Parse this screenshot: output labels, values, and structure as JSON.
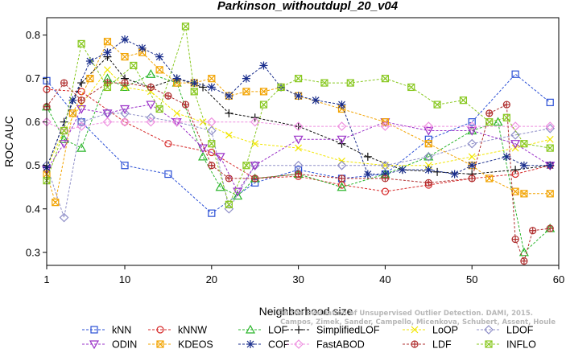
{
  "chart_data": {
    "type": "line",
    "title": "Parkinson_withoutdupl_20_v04",
    "xlabel": "Neighborhood size",
    "ylabel": "ROC AUC",
    "xlim": [
      1,
      60
    ],
    "ylim": [
      0.27,
      0.84
    ],
    "xticks": [
      1,
      10,
      20,
      30,
      40,
      50,
      60
    ],
    "yticks": [
      0.3,
      0.4,
      0.5,
      0.6,
      0.7,
      0.8
    ],
    "grid": false,
    "legend_position": "bottom",
    "watermark": [
      "On the Evaluation of Unsupervised Outlier Detection. DAMI, 2015.",
      "Campos, Zimek, Sander, Campello, Micenkova, Schubert, Assent, Houle"
    ],
    "series": [
      {
        "name": "kNN",
        "color": "#2a4fd6",
        "marker": "square",
        "x": [
          1,
          5,
          10,
          15,
          20,
          25,
          30,
          35,
          40,
          45,
          50,
          55,
          59
        ],
        "y": [
          0.695,
          0.6,
          0.5,
          0.48,
          0.39,
          0.46,
          0.49,
          0.47,
          0.48,
          0.56,
          0.6,
          0.71,
          0.645
        ]
      },
      {
        "name": "kNNW",
        "color": "#d62a2a",
        "marker": "circle",
        "x": [
          1,
          5,
          10,
          15,
          20,
          25,
          30,
          35,
          40,
          45,
          50,
          55,
          59
        ],
        "y": [
          0.675,
          0.67,
          0.6,
          0.55,
          0.53,
          0.47,
          0.475,
          0.455,
          0.44,
          0.455,
          0.47,
          0.48,
          0.5
        ]
      },
      {
        "name": "LOF",
        "color": "#2bb52b",
        "marker": "triangle-up",
        "x": [
          1,
          3,
          5,
          8,
          10,
          13,
          16,
          19,
          21,
          23,
          25,
          30,
          35,
          40,
          45,
          50,
          53,
          56,
          59
        ],
        "y": [
          0.635,
          0.56,
          0.54,
          0.7,
          0.68,
          0.71,
          0.69,
          0.52,
          0.45,
          0.43,
          0.47,
          0.48,
          0.45,
          0.48,
          0.52,
          0.58,
          0.6,
          0.3,
          0.355
        ]
      },
      {
        "name": "SimplifiedLOF",
        "color": "#111111",
        "marker": "plus",
        "x": [
          1,
          3,
          5,
          8,
          10,
          13,
          16,
          19,
          22,
          25,
          30,
          35,
          38,
          42,
          46,
          50,
          55,
          59
        ],
        "y": [
          0.495,
          0.6,
          0.69,
          0.75,
          0.7,
          0.68,
          0.7,
          0.68,
          0.62,
          0.61,
          0.59,
          0.55,
          0.52,
          0.49,
          0.485,
          0.48,
          0.49,
          0.5
        ]
      },
      {
        "name": "LoOP",
        "color": "#f2e600",
        "marker": "x",
        "x": [
          1,
          3,
          5,
          8,
          10,
          13,
          16,
          19,
          22,
          25,
          30,
          35,
          40,
          45,
          50,
          55,
          59
        ],
        "y": [
          0.495,
          0.58,
          0.64,
          0.72,
          0.68,
          0.67,
          0.62,
          0.6,
          0.57,
          0.55,
          0.54,
          0.51,
          0.5,
          0.5,
          0.52,
          0.54,
          0.56
        ]
      },
      {
        "name": "LDOF",
        "color": "#8f8fc8",
        "marker": "diamond",
        "x": [
          1,
          3,
          5,
          8,
          10,
          13,
          16,
          20,
          22,
          25,
          30,
          35,
          40,
          45,
          50,
          55,
          59
        ],
        "y": [
          0.5,
          0.38,
          0.6,
          0.62,
          0.62,
          0.61,
          0.6,
          0.58,
          0.4,
          0.5,
          0.5,
          0.5,
          0.5,
          0.52,
          0.55,
          0.57,
          0.585
        ]
      },
      {
        "name": "ODIN",
        "color": "#9a30c8",
        "marker": "triangle-down",
        "x": [
          1,
          3,
          5,
          8,
          10,
          13,
          16,
          19,
          21,
          23,
          25,
          30,
          35,
          40,
          45,
          50,
          55,
          59
        ],
        "y": [
          0.49,
          0.55,
          0.63,
          0.62,
          0.63,
          0.64,
          0.6,
          0.54,
          0.52,
          0.44,
          0.5,
          0.56,
          0.56,
          0.6,
          0.58,
          0.58,
          0.55,
          0.5
        ]
      },
      {
        "name": "KDEOS",
        "color": "#f2a300",
        "marker": "boxed-x",
        "x": [
          1,
          2,
          4,
          6,
          8,
          10,
          12,
          14,
          16,
          18,
          20,
          22,
          24,
          26,
          28,
          30,
          35,
          40,
          45,
          50,
          52,
          55,
          56,
          59
        ],
        "y": [
          0.48,
          0.415,
          0.62,
          0.7,
          0.785,
          0.75,
          0.76,
          0.72,
          0.69,
          0.69,
          0.7,
          0.66,
          0.67,
          0.67,
          0.68,
          0.66,
          0.63,
          0.6,
          0.55,
          0.5,
          0.47,
          0.44,
          0.435,
          0.435
        ]
      },
      {
        "name": "COF",
        "color": "#1a2e8c",
        "marker": "asterisk",
        "x": [
          1,
          4,
          6,
          8,
          10,
          12,
          14,
          16,
          18,
          20,
          22,
          24,
          26,
          28,
          30,
          32,
          35,
          38,
          40,
          42,
          45,
          48,
          50,
          54,
          56,
          59
        ],
        "y": [
          0.495,
          0.65,
          0.74,
          0.76,
          0.79,
          0.77,
          0.75,
          0.7,
          0.69,
          0.68,
          0.66,
          0.7,
          0.73,
          0.68,
          0.66,
          0.65,
          0.64,
          0.48,
          0.48,
          0.49,
          0.49,
          0.48,
          0.5,
          0.52,
          0.5,
          0.5
        ]
      },
      {
        "name": "FastABOD",
        "color": "#ee8fe0",
        "marker": "diamond",
        "x": [
          1,
          3,
          5,
          8,
          10,
          13,
          16,
          20,
          25,
          30,
          35,
          40,
          45,
          50,
          55,
          59
        ],
        "y": [
          0.6,
          0.58,
          0.59,
          0.6,
          0.6,
          0.6,
          0.6,
          0.6,
          0.6,
          0.59,
          0.59,
          0.59,
          0.59,
          0.59,
          0.59,
          0.59
        ]
      },
      {
        "name": "LDF",
        "color": "#b03030",
        "marker": "circle-plus",
        "x": [
          1,
          3,
          5,
          8,
          10,
          13,
          15,
          17,
          20,
          22,
          25,
          30,
          35,
          40,
          45,
          50,
          52,
          54,
          55,
          56,
          57,
          59
        ],
        "y": [
          0.635,
          0.69,
          0.65,
          0.69,
          0.69,
          0.68,
          0.66,
          0.64,
          0.5,
          0.47,
          0.47,
          0.48,
          0.47,
          0.47,
          0.46,
          0.47,
          0.62,
          0.64,
          0.33,
          0.28,
          0.35,
          0.355
        ]
      },
      {
        "name": "INFLO",
        "color": "#88c820",
        "marker": "boxed-x",
        "x": [
          1,
          3,
          5,
          8,
          11,
          14,
          17,
          18,
          20,
          22,
          24,
          26,
          28,
          30,
          33,
          36,
          40,
          43,
          46,
          49,
          52,
          54,
          56,
          59
        ],
        "y": [
          0.465,
          0.58,
          0.78,
          0.68,
          0.73,
          0.63,
          0.82,
          0.67,
          0.55,
          0.41,
          0.5,
          0.64,
          0.68,
          0.7,
          0.69,
          0.69,
          0.7,
          0.68,
          0.64,
          0.65,
          0.6,
          0.61,
          0.55,
          0.54
        ]
      }
    ]
  }
}
